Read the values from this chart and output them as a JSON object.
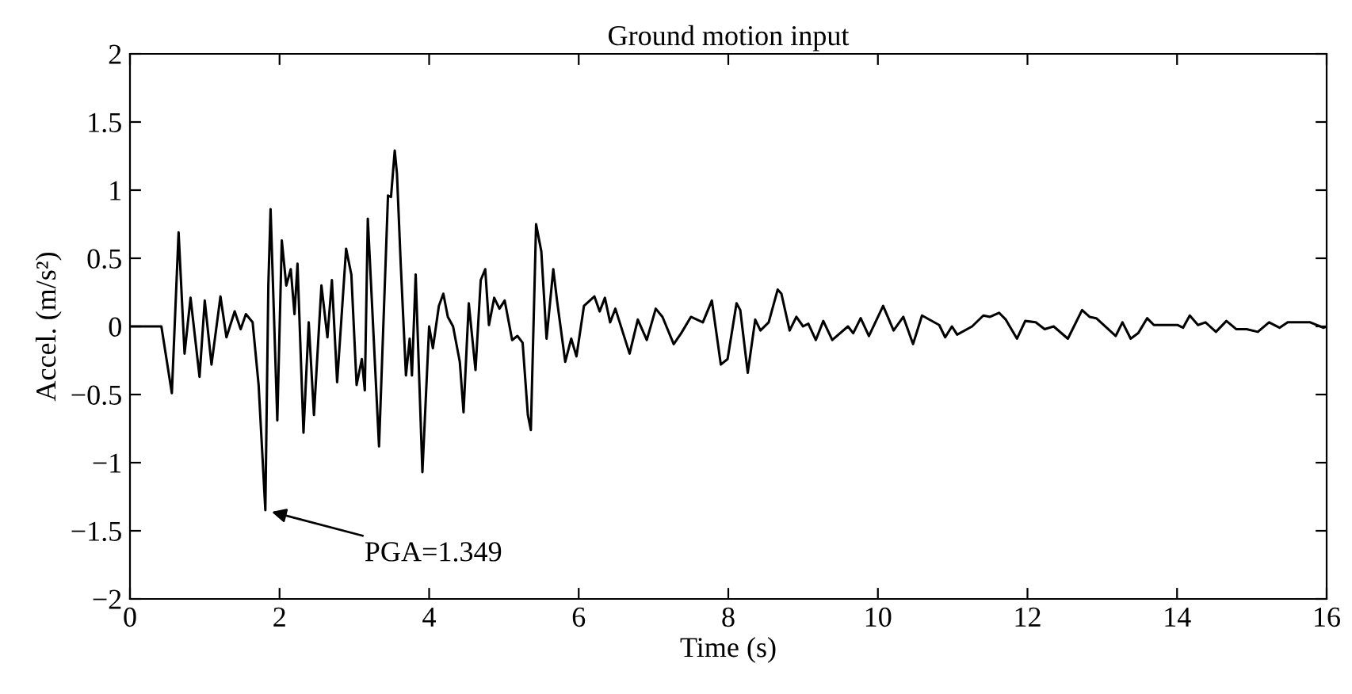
{
  "chart_data": {
    "type": "line",
    "title": "Ground motion input",
    "xlabel": "Time (s)",
    "ylabel": "Accel. (m/s²)",
    "xlim": [
      0,
      16
    ],
    "ylim": [
      -2,
      2
    ],
    "xticks": [
      0,
      2,
      4,
      6,
      8,
      10,
      12,
      14,
      16
    ],
    "yticks": [
      {
        "value": -2,
        "label": "−2"
      },
      {
        "value": -1.5,
        "label": "−1.5"
      },
      {
        "value": -1,
        "label": "−1"
      },
      {
        "value": -0.5,
        "label": "−0.5"
      },
      0,
      0.5,
      1,
      1.5,
      2
    ],
    "grid": false,
    "legend": false,
    "marker": "none",
    "line_style": "solid",
    "annotations": [
      {
        "text": "PGA=1.349",
        "x": 1.81,
        "y": -1.349
      }
    ],
    "series": [
      {
        "color": "#000000",
        "x": [
          0,
          0.42,
          0.56,
          0.65,
          0.73,
          0.81,
          0.93,
          1.0,
          1.09,
          1.21,
          1.29,
          1.4,
          1.48,
          1.55,
          1.64,
          1.72,
          1.81,
          1.85,
          1.88,
          1.97,
          2.03,
          2.09,
          2.15,
          2.2,
          2.24,
          2.32,
          2.39,
          2.46,
          2.56,
          2.64,
          2.7,
          2.77,
          2.89,
          2.96,
          3.03,
          3.1,
          3.14,
          3.18,
          3.33,
          3.45,
          3.49,
          3.54,
          3.57,
          3.62,
          3.69,
          3.74,
          3.77,
          3.82,
          3.91,
          4.0,
          4.05,
          4.13,
          4.19,
          4.25,
          4.32,
          4.41,
          4.46,
          4.53,
          4.62,
          4.69,
          4.75,
          4.8,
          4.87,
          4.94,
          5.01,
          5.11,
          5.18,
          5.25,
          5.32,
          5.36,
          5.43,
          5.5,
          5.57,
          5.66,
          5.71,
          5.82,
          5.9,
          5.97,
          6.07,
          6.21,
          6.28,
          6.35,
          6.42,
          6.49,
          6.68,
          6.79,
          6.91,
          7.03,
          7.12,
          7.27,
          7.37,
          7.5,
          7.66,
          7.78,
          7.9,
          7.99,
          8.11,
          8.16,
          8.26,
          8.36,
          8.43,
          8.54,
          8.66,
          8.71,
          8.82,
          8.91,
          9.0,
          9.07,
          9.17,
          9.27,
          9.39,
          9.6,
          9.67,
          9.77,
          9.88,
          10.07,
          10.21,
          10.34,
          10.47,
          10.59,
          10.82,
          10.9,
          10.99,
          11.06,
          11.26,
          11.41,
          11.5,
          11.62,
          11.71,
          11.86,
          11.97,
          12.11,
          12.23,
          12.35,
          12.54,
          12.73,
          12.83,
          12.92,
          13.18,
          13.27,
          13.38,
          13.48,
          13.6,
          13.69,
          14.01,
          14.08,
          14.17,
          14.28,
          14.38,
          14.52,
          14.66,
          14.79,
          14.93,
          15.08,
          15.23,
          15.37,
          15.48,
          15.78,
          15.96,
          16
        ],
        "values": [
          0,
          0,
          -0.49,
          0.69,
          -0.2,
          0.21,
          -0.37,
          0.19,
          -0.28,
          0.22,
          -0.08,
          0.11,
          -0.02,
          0.09,
          0.03,
          -0.43,
          -1.349,
          0.3,
          0.86,
          -0.69,
          0.63,
          0.3,
          0.42,
          0.09,
          0.46,
          -0.78,
          0.03,
          -0.65,
          0.3,
          -0.08,
          0.34,
          -0.41,
          0.57,
          0.38,
          -0.43,
          -0.24,
          -0.47,
          0.79,
          -0.88,
          0.96,
          0.95,
          1.29,
          1.12,
          0.46,
          -0.36,
          -0.09,
          -0.36,
          0.38,
          -1.07,
          0,
          -0.16,
          0.15,
          0.24,
          0.07,
          0,
          -0.26,
          -0.63,
          0.17,
          -0.32,
          0.34,
          0.42,
          0.01,
          0.21,
          0.13,
          0.19,
          -0.1,
          -0.07,
          -0.12,
          -0.65,
          -0.76,
          0.75,
          0.55,
          -0.09,
          0.42,
          0.19,
          -0.26,
          -0.09,
          -0.22,
          0.15,
          0.22,
          0.11,
          0.21,
          0.03,
          0.13,
          -0.2,
          0.05,
          -0.1,
          0.13,
          0.07,
          -0.13,
          -0.05,
          0.07,
          0.03,
          0.19,
          -0.28,
          -0.24,
          0.17,
          0.12,
          -0.34,
          0.05,
          -0.03,
          0.03,
          0.27,
          0.24,
          -0.03,
          0.07,
          0,
          0.02,
          -0.1,
          0.04,
          -0.1,
          0,
          -0.05,
          0.06,
          -0.07,
          0.15,
          -0.03,
          0.07,
          -0.13,
          0.08,
          0.01,
          -0.08,
          0,
          -0.06,
          0,
          0.08,
          0.07,
          0.1,
          0.05,
          -0.09,
          0.04,
          0.03,
          -0.02,
          0,
          -0.09,
          0.12,
          0.07,
          0.06,
          -0.07,
          0.03,
          -0.09,
          -0.05,
          0.06,
          0.01,
          0.01,
          -0.01,
          0.08,
          0.01,
          0.03,
          -0.04,
          0.04,
          -0.02,
          -0.02,
          -0.04,
          0.03,
          -0.01,
          0.03,
          0.03,
          -0.01,
          0
        ]
      }
    ]
  }
}
